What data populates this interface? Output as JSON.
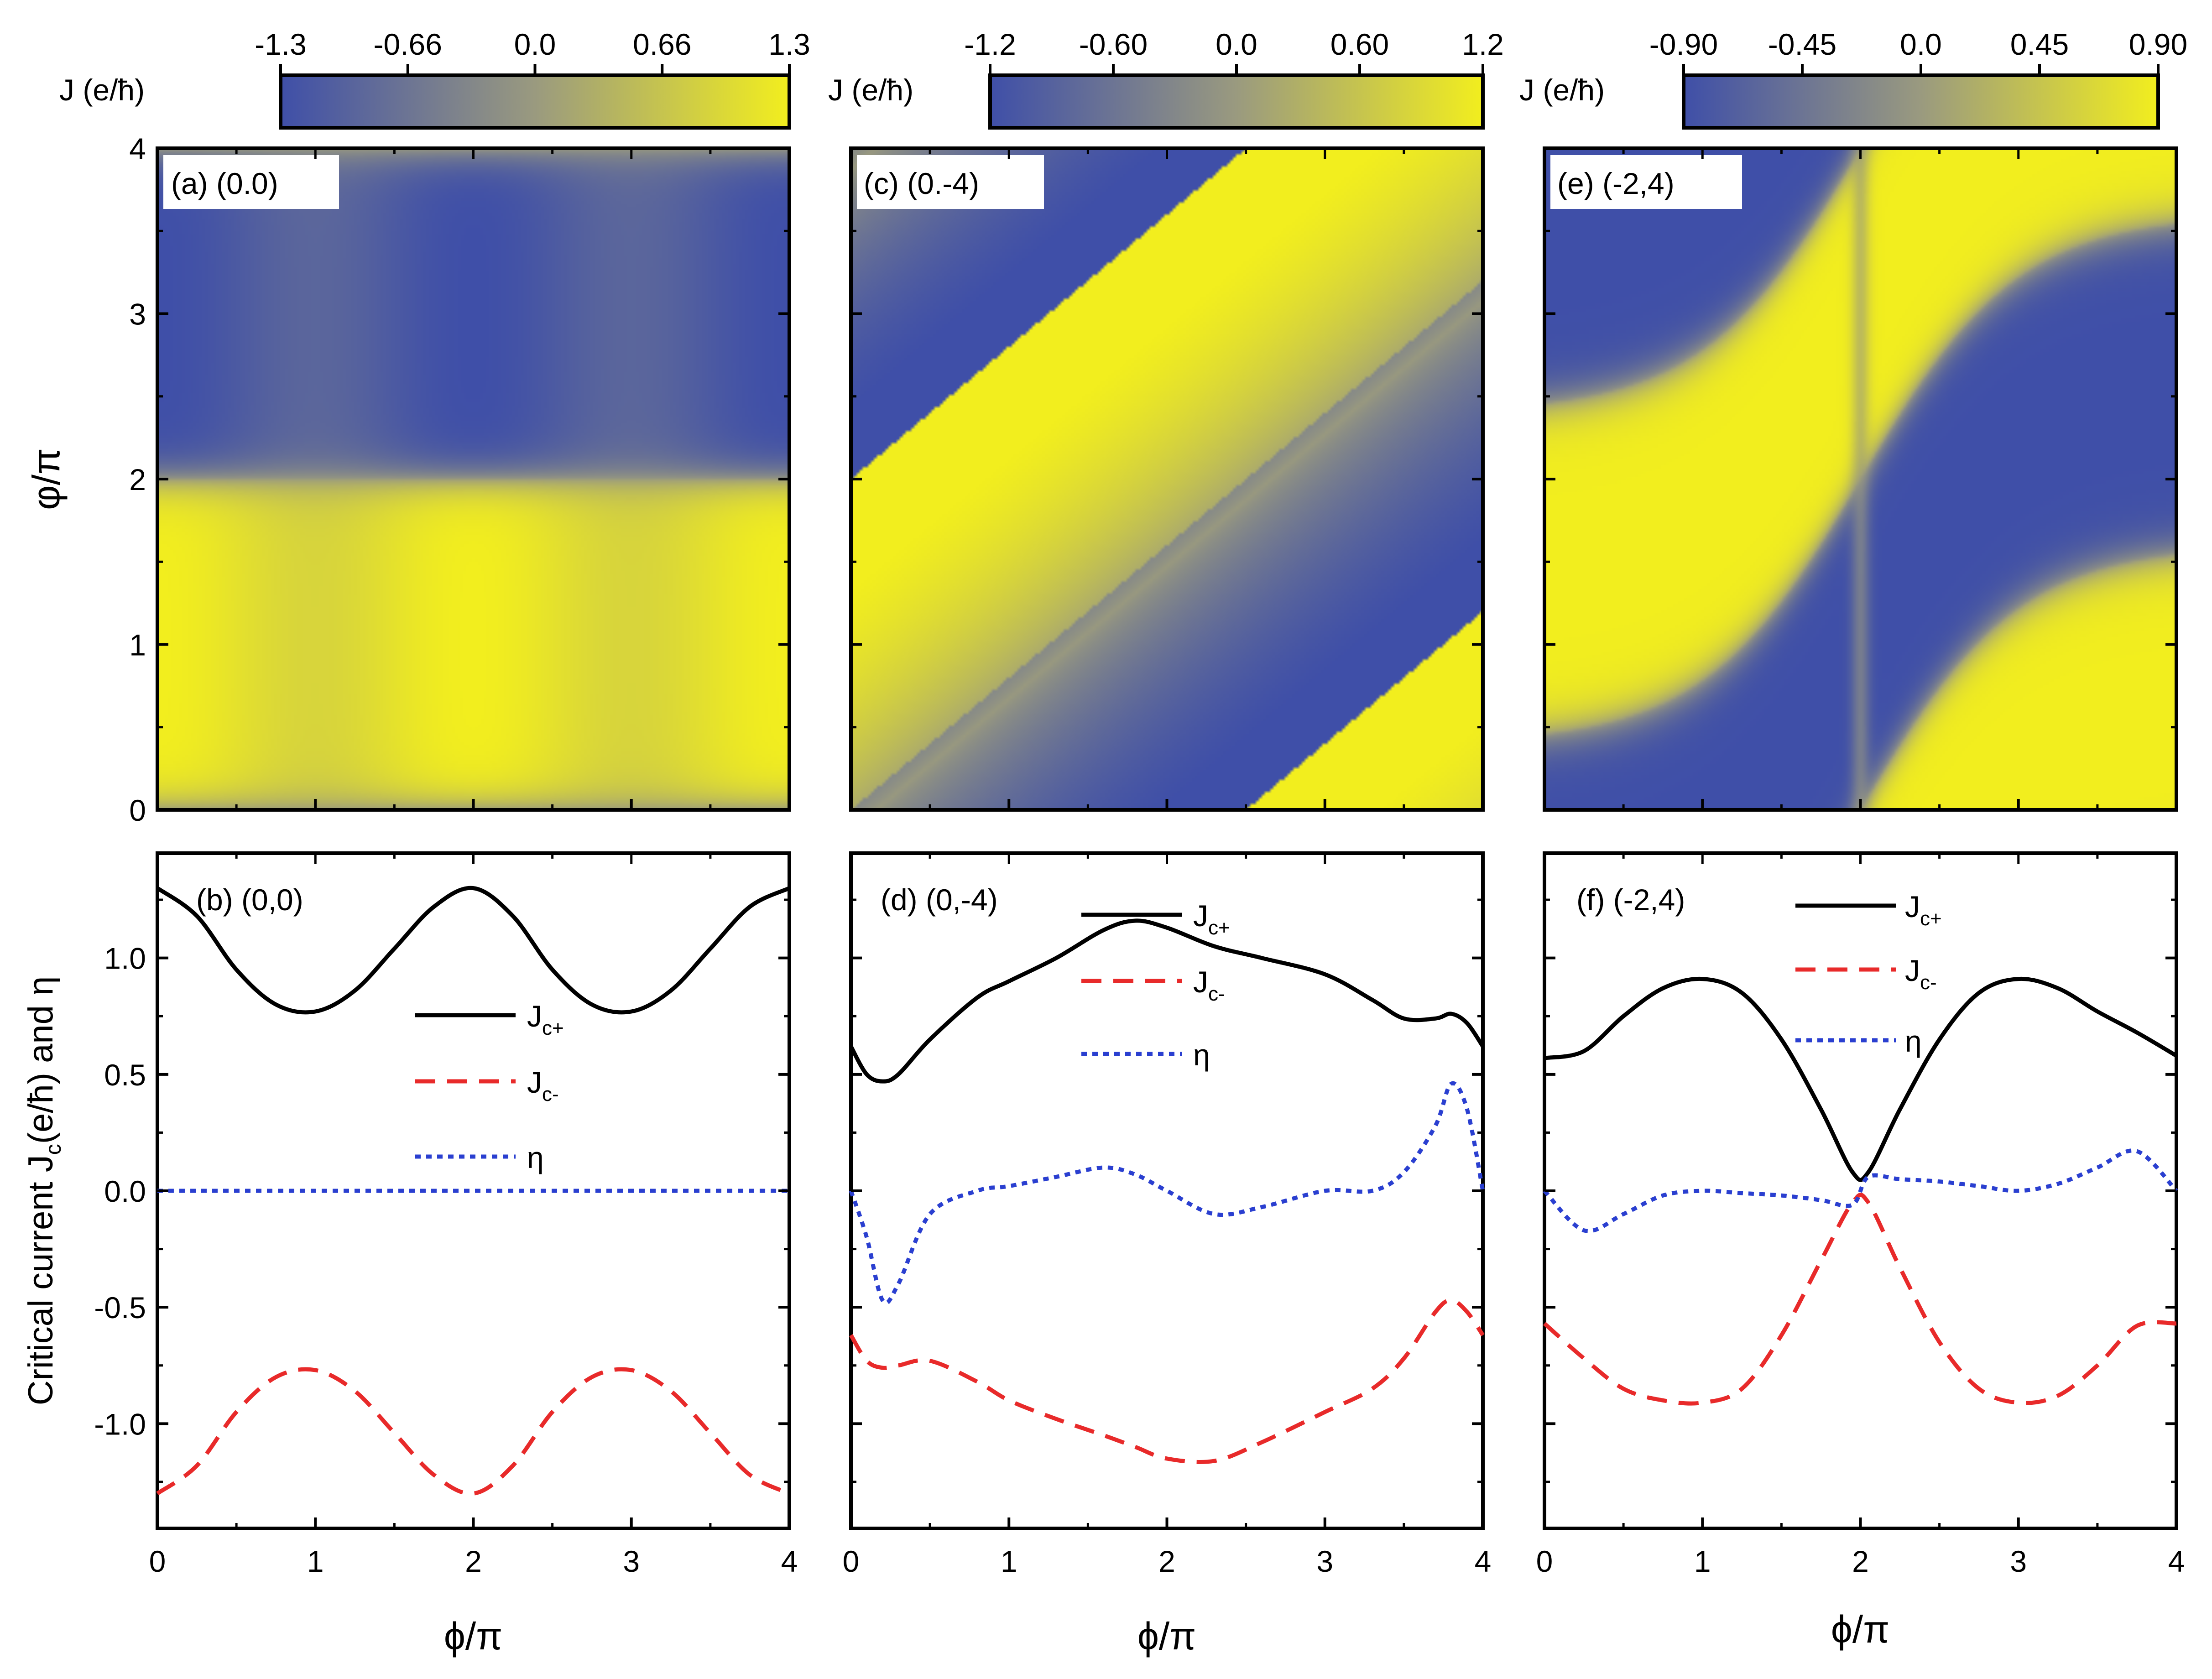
{
  "figure": {
    "x_axis_label": "ϕ/π",
    "top_y_axis_label": "φ/π",
    "bottom_y_axis_label": "Critical current J",
    "bottom_y_axis_label_sub": "c",
    "bottom_y_axis_label_tail": "(e/ħ) and η",
    "colorbar_label": "J (e/ħ)",
    "colormap": {
      "low": "#3f4fa8",
      "mid": "#9a9a7f",
      "high": "#f2ee1e"
    },
    "line_colors": {
      "jc_plus": "#000000",
      "jc_minus": "#e82a2a",
      "eta": "#2a3fd0"
    },
    "x_ticks": [
      "0",
      "1",
      "2",
      "3",
      "4"
    ],
    "top_y_ticks": [
      "0",
      "1",
      "2",
      "3",
      "4"
    ],
    "bottom_y_ticks": [
      "-1.0",
      "-0.5",
      "0.0",
      "0.5",
      "1.0"
    ],
    "legend": {
      "jc_plus": "J",
      "jc_plus_sub": "c+",
      "jc_minus": "J",
      "jc_minus_sub": "c-",
      "eta": "η"
    }
  },
  "chart_data": [
    {
      "type": "heatmap",
      "panel": "a",
      "label": "(a) (0.0)",
      "xlabel": "ϕ/π",
      "ylabel": "φ/π",
      "xlim": [
        0,
        4
      ],
      "ylim": [
        0,
        4
      ],
      "colorbar": {
        "range": [
          -1.3,
          1.3
        ],
        "ticks": [
          "-1.3",
          "-0.66",
          "0.0",
          "0.66",
          "1.3"
        ]
      },
      "model": {
        "a": 0.0,
        "b": 0.0,
        "description": "current density J(ϕ,φ); yellow positive, blue negative"
      }
    },
    {
      "type": "heatmap",
      "panel": "c",
      "label": "(c) (0.-4)",
      "xlabel": "ϕ/π",
      "xlim": [
        0,
        4
      ],
      "ylim": [
        0,
        4
      ],
      "colorbar": {
        "range": [
          -1.2,
          1.2
        ],
        "ticks": [
          "-1.2",
          "-0.60",
          "0.0",
          "0.60",
          "1.2"
        ]
      },
      "model": {
        "a": 0.0,
        "b": -4.0,
        "description": "diagonal stripes of alternating sign"
      }
    },
    {
      "type": "heatmap",
      "panel": "e",
      "label": "(e) (-2,4)",
      "xlabel": "ϕ/π",
      "xlim": [
        0,
        4
      ],
      "ylim": [
        0,
        4
      ],
      "colorbar": {
        "range": [
          -0.9,
          0.9
        ],
        "ticks": [
          "-0.90",
          "-0.45",
          "0.0",
          "0.45",
          "0.90"
        ]
      },
      "model": {
        "a": -2.0,
        "b": 4.0,
        "description": "S-shaped bands with a suppressed vertical line at ϕ=2π"
      }
    },
    {
      "type": "line",
      "panel": "b",
      "label": "(b) (0,0)",
      "xlabel": "ϕ/π",
      "ylabel": "Critical current Jc(e/ħ) and η",
      "xlim": [
        0,
        4
      ],
      "ylim": [
        -1.45,
        1.45
      ],
      "x": [
        0,
        0.25,
        0.5,
        0.75,
        1.0,
        1.25,
        1.5,
        1.75,
        2.0,
        2.25,
        2.5,
        2.75,
        3.0,
        3.25,
        3.5,
        3.75,
        4.0
      ],
      "series": [
        {
          "name": "Jc+",
          "values": [
            1.3,
            1.18,
            0.95,
            0.8,
            0.77,
            0.86,
            1.04,
            1.22,
            1.3,
            1.18,
            0.95,
            0.8,
            0.77,
            0.86,
            1.04,
            1.22,
            1.3
          ]
        },
        {
          "name": "Jc-",
          "values": [
            -1.3,
            -1.18,
            -0.95,
            -0.8,
            -0.77,
            -0.86,
            -1.04,
            -1.22,
            -1.3,
            -1.18,
            -0.95,
            -0.8,
            -0.77,
            -0.86,
            -1.04,
            -1.22,
            -1.3
          ]
        },
        {
          "name": "η",
          "values": [
            0,
            0,
            0,
            0,
            0,
            0,
            0,
            0,
            0,
            0,
            0,
            0,
            0,
            0,
            0,
            0,
            0
          ]
        }
      ]
    },
    {
      "type": "line",
      "panel": "d",
      "label": "(d) (0,-4)",
      "xlabel": "ϕ/π",
      "xlim": [
        0,
        4
      ],
      "ylim": [
        -1.45,
        1.45
      ],
      "x": [
        0,
        0.1,
        0.2,
        0.3,
        0.5,
        0.8,
        1.0,
        1.3,
        1.6,
        1.8,
        2.0,
        2.3,
        2.6,
        3.0,
        3.3,
        3.5,
        3.7,
        3.8,
        3.9,
        4.0
      ],
      "series": [
        {
          "name": "Jc+",
          "values": [
            0.62,
            0.5,
            0.47,
            0.5,
            0.65,
            0.83,
            0.9,
            1.0,
            1.12,
            1.16,
            1.13,
            1.05,
            1.0,
            0.93,
            0.82,
            0.74,
            0.74,
            0.76,
            0.72,
            0.62
          ]
        },
        {
          "name": "Jc-",
          "values": [
            -0.62,
            -0.73,
            -0.76,
            -0.75,
            -0.73,
            -0.82,
            -0.9,
            -0.98,
            -1.05,
            -1.1,
            -1.15,
            -1.16,
            -1.08,
            -0.95,
            -0.85,
            -0.72,
            -0.52,
            -0.47,
            -0.52,
            -0.62
          ]
        },
        {
          "name": "η",
          "values": [
            0.0,
            -0.2,
            -0.47,
            -0.4,
            -0.1,
            0.0,
            0.02,
            0.06,
            0.1,
            0.07,
            0.0,
            -0.1,
            -0.07,
            0.0,
            0.0,
            0.08,
            0.28,
            0.46,
            0.35,
            0.0
          ]
        }
      ]
    },
    {
      "type": "line",
      "panel": "f",
      "label": "(f) (-2,4)",
      "xlabel": "ϕ/π",
      "xlim": [
        0,
        4
      ],
      "ylim": [
        -1.45,
        1.45
      ],
      "x": [
        0,
        0.25,
        0.5,
        0.75,
        1.0,
        1.25,
        1.5,
        1.75,
        1.95,
        2.05,
        2.25,
        2.5,
        2.75,
        3.0,
        3.25,
        3.5,
        3.75,
        4.0
      ],
      "series": [
        {
          "name": "Jc+",
          "values": [
            0.57,
            0.6,
            0.75,
            0.87,
            0.91,
            0.85,
            0.65,
            0.35,
            0.08,
            0.08,
            0.35,
            0.65,
            0.85,
            0.91,
            0.87,
            0.77,
            0.68,
            0.58
          ]
        },
        {
          "name": "Jc-",
          "values": [
            -0.57,
            -0.72,
            -0.85,
            -0.9,
            -0.91,
            -0.85,
            -0.62,
            -0.3,
            -0.05,
            -0.05,
            -0.33,
            -0.65,
            -0.85,
            -0.91,
            -0.88,
            -0.75,
            -0.58,
            -0.57
          ]
        },
        {
          "name": "η",
          "values": [
            0.0,
            -0.17,
            -0.1,
            -0.02,
            0.0,
            -0.01,
            -0.02,
            -0.04,
            -0.06,
            0.06,
            0.05,
            0.04,
            0.02,
            0.0,
            0.03,
            0.1,
            0.17,
            0.0
          ]
        }
      ]
    }
  ]
}
